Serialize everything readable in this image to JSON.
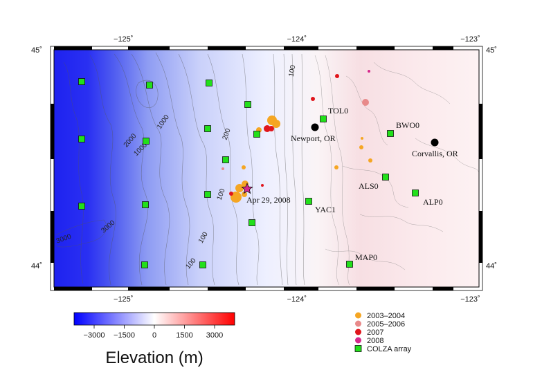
{
  "map": {
    "lon_ticks": [
      {
        "lon": -125,
        "label": "−125˚"
      },
      {
        "lon": -124,
        "label": "−124˚"
      },
      {
        "lon": -123,
        "label": "−123˚"
      }
    ],
    "lat_ticks": [
      {
        "lat": 45,
        "label": "45˚"
      },
      {
        "lat": 44,
        "label": "44˚"
      }
    ],
    "contour_labels": [
      "1000",
      "2000",
      "1000",
      "3000",
      "3000",
      "200",
      "100",
      "100",
      "100",
      "100"
    ]
  },
  "stations": [
    {
      "name": "TOL0",
      "label": "TOL0"
    },
    {
      "name": "BWO0",
      "label": "BWO0"
    },
    {
      "name": "ALS0",
      "label": "ALS0"
    },
    {
      "name": "ALP0",
      "label": "ALP0"
    },
    {
      "name": "YAC1",
      "label": "YAC1"
    },
    {
      "name": "MAP0",
      "label": "MAP0"
    }
  ],
  "cities": [
    {
      "name": "Newport, OR"
    },
    {
      "name": "Corvallis, OR"
    }
  ],
  "event_label": "Apr 29, 2008",
  "colorbar": {
    "title": "Elevation (m)",
    "ticks": [
      "−3000",
      "−1500",
      "0",
      "1500",
      "3000"
    ],
    "min": -4000,
    "max": 4000,
    "colors": {
      "low": "#0000ff",
      "mid": "#ffffff",
      "high": "#ff0000"
    }
  },
  "legend": {
    "items": [
      {
        "label": "2003–2004",
        "color": "#f5a623",
        "symbol": "circle"
      },
      {
        "label": "2005–2006",
        "color": "#e88a8a",
        "symbol": "circle"
      },
      {
        "label": "2007",
        "color": "#e0151b",
        "symbol": "circle"
      },
      {
        "label": "2008",
        "color": "#d6288c",
        "symbol": "circle"
      },
      {
        "label": "COLZA array",
        "color": "#22e01a",
        "symbol": "square"
      }
    ]
  }
}
